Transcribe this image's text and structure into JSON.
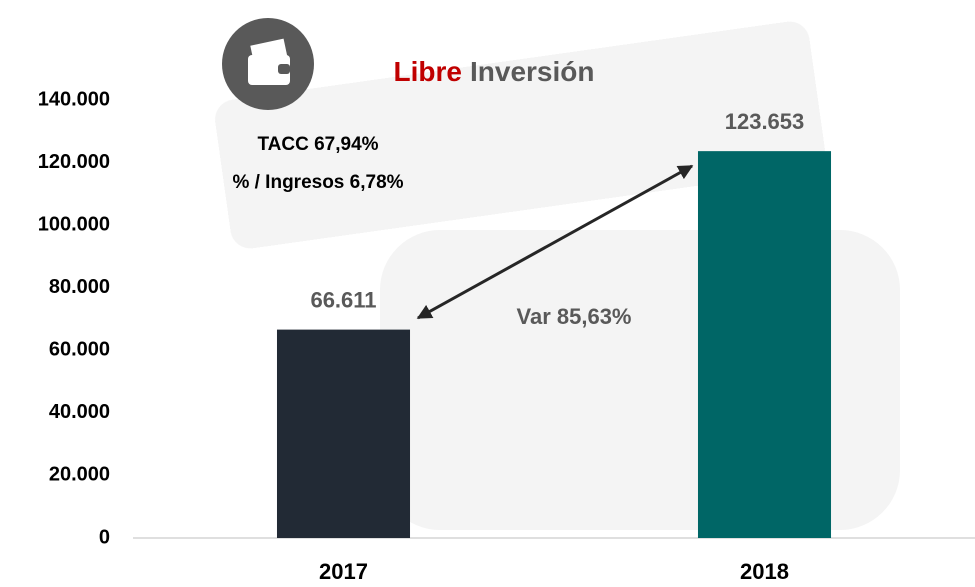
{
  "chart_data": {
    "type": "bar",
    "title": [
      {
        "text": "Libre",
        "color": "#c00000"
      },
      {
        "text": "Inversión",
        "color": "#595959"
      }
    ],
    "categories": [
      "2017",
      "2018"
    ],
    "values": [
      66611,
      123653
    ],
    "value_labels": [
      "66.611",
      "123.653"
    ],
    "colors": [
      "#222a35",
      "#006666"
    ],
    "ylim": [
      0,
      140000
    ],
    "yticks": [
      0,
      {
        "value": 20000,
        "label": "20.000"
      },
      {
        "value": 40000,
        "label": "40.000"
      },
      {
        "value": 60000,
        "label": "60.000"
      },
      {
        "value": 80000,
        "label": "80.000"
      },
      {
        "value": 100000,
        "label": "100.000"
      },
      {
        "value": 120000,
        "label": "120.000"
      },
      {
        "value": 140000,
        "label": "140.000"
      }
    ],
    "grid": false,
    "annotations": [
      "TACC 67,94%",
      "% / Ingresos 6,78%",
      "Var 85,63%"
    ]
  }
}
